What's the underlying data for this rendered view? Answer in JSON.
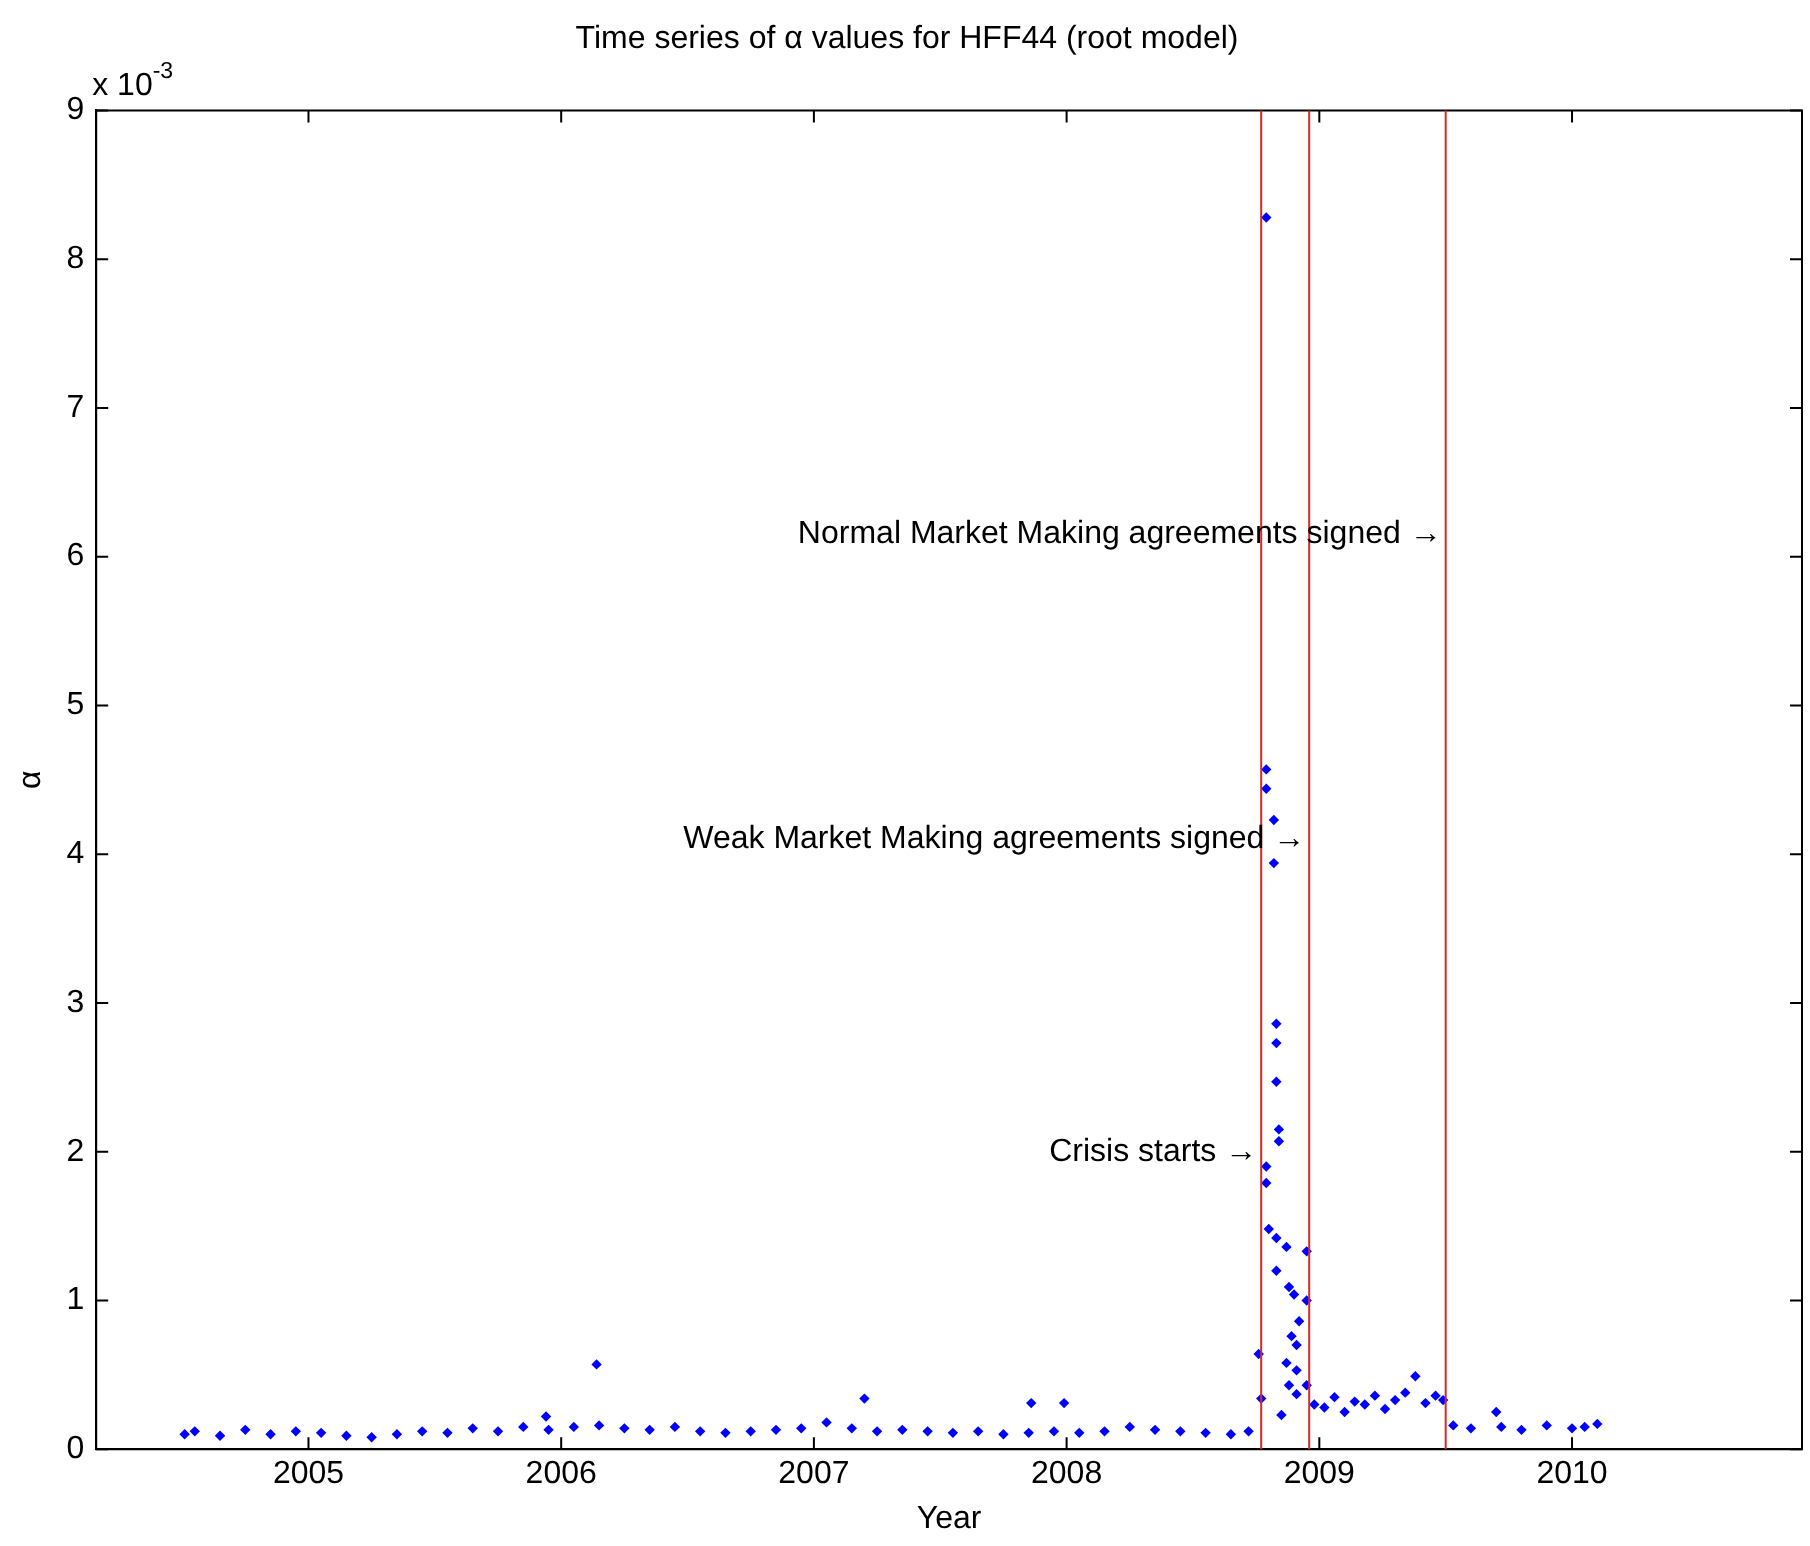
{
  "chart_data": {
    "type": "scatter",
    "title": "Time series of α values for HFF44 (root model)",
    "xlabel": "Year",
    "ylabel": "α",
    "xlim": [
      2004.16,
      2010.91
    ],
    "xticks": [
      2005,
      2006,
      2007,
      2008,
      2009,
      2010
    ],
    "ylim": [
      0,
      9
    ],
    "yticks": [
      0,
      1,
      2,
      3,
      4,
      5,
      6,
      7,
      8,
      9
    ],
    "grid": false,
    "legend": false,
    "marker": "diamond",
    "ref_lines": [
      {
        "axis": "x",
        "value": 2008.77,
        "color": "#d62828"
      },
      {
        "axis": "x",
        "value": 2008.96,
        "color": "#d62828"
      },
      {
        "axis": "x",
        "value": 2009.5,
        "color": "#d62828"
      }
    ],
    "annotations": [
      "x 10$^{-3}$",
      {
        "text": "Crisis starts →",
        "x": 2008.77,
        "y": 2.0
      },
      {
        "text": "Weak Market Making agreements signed →",
        "x": 2008.96,
        "y": 4.1
      },
      {
        "text": "Normal Market Making agreements signed →",
        "x": 2009.5,
        "y": 6.15
      }
    ],
    "series": [
      {
        "color": "#0000ff",
        "x": [
          2004.51,
          2004.55,
          2004.65,
          2004.75,
          2004.85,
          2004.95,
          2005.05,
          2005.15,
          2005.25,
          2005.35,
          2005.45,
          2005.55,
          2005.65,
          2005.75,
          2005.85,
          2005.94,
          2005.95,
          2006.05,
          2006.14,
          2006.15,
          2006.25,
          2006.35,
          2006.45,
          2006.55,
          2006.65,
          2006.75,
          2006.85,
          2006.95,
          2007.05,
          2007.15,
          2007.2,
          2007.25,
          2007.35,
          2007.45,
          2007.55,
          2007.65,
          2007.75,
          2007.85,
          2007.86,
          2007.95,
          2007.99,
          2008.05,
          2008.15,
          2008.25,
          2008.35,
          2008.45,
          2008.55,
          2008.65,
          2008.72,
          2008.76,
          2008.77,
          2008.79,
          2008.79,
          2008.79,
          2008.79,
          2008.79,
          2008.8,
          2008.82,
          2008.82,
          2008.83,
          2008.83,
          2008.83,
          2008.83,
          2008.84,
          2008.84,
          2008.83,
          2008.85,
          2008.87,
          2008.87,
          2008.88,
          2008.88,
          2008.89,
          2008.9,
          2008.91,
          2008.91,
          2008.91,
          2008.92,
          2008.95,
          2008.95,
          2008.95,
          2008.98,
          2009.02,
          2009.06,
          2009.1,
          2009.14,
          2009.18,
          2009.22,
          2009.26,
          2009.3,
          2009.34,
          2009.38,
          2009.42,
          2009.46,
          2009.49,
          2009.53,
          2009.6,
          2009.7,
          2009.72,
          2009.8,
          2009.9,
          2010.0,
          2010.05,
          2010.1
        ],
        "values": [
          0.1,
          0.12,
          0.09,
          0.13,
          0.1,
          0.12,
          0.11,
          0.09,
          0.08,
          0.1,
          0.12,
          0.11,
          0.14,
          0.12,
          0.15,
          0.22,
          0.13,
          0.15,
          0.57,
          0.16,
          0.14,
          0.13,
          0.15,
          0.12,
          0.11,
          0.12,
          0.13,
          0.14,
          0.18,
          0.14,
          0.34,
          0.12,
          0.13,
          0.12,
          0.11,
          0.12,
          0.1,
          0.11,
          0.31,
          0.12,
          0.31,
          0.11,
          0.12,
          0.15,
          0.13,
          0.12,
          0.11,
          0.1,
          0.12,
          0.64,
          0.34,
          8.28,
          4.57,
          4.44,
          1.9,
          1.79,
          1.48,
          4.23,
          3.94,
          2.86,
          2.73,
          2.47,
          1.42,
          2.15,
          2.07,
          1.2,
          0.23,
          1.36,
          0.58,
          1.09,
          0.43,
          0.76,
          1.04,
          0.53,
          0.37,
          0.7,
          0.86,
          1.33,
          1.0,
          0.43,
          0.3,
          0.28,
          0.35,
          0.25,
          0.32,
          0.3,
          0.36,
          0.27,
          0.33,
          0.38,
          0.49,
          0.31,
          0.36,
          0.33,
          0.16,
          0.14,
          0.25,
          0.15,
          0.13,
          0.16,
          0.14,
          0.15,
          0.17
        ]
      }
    ]
  }
}
